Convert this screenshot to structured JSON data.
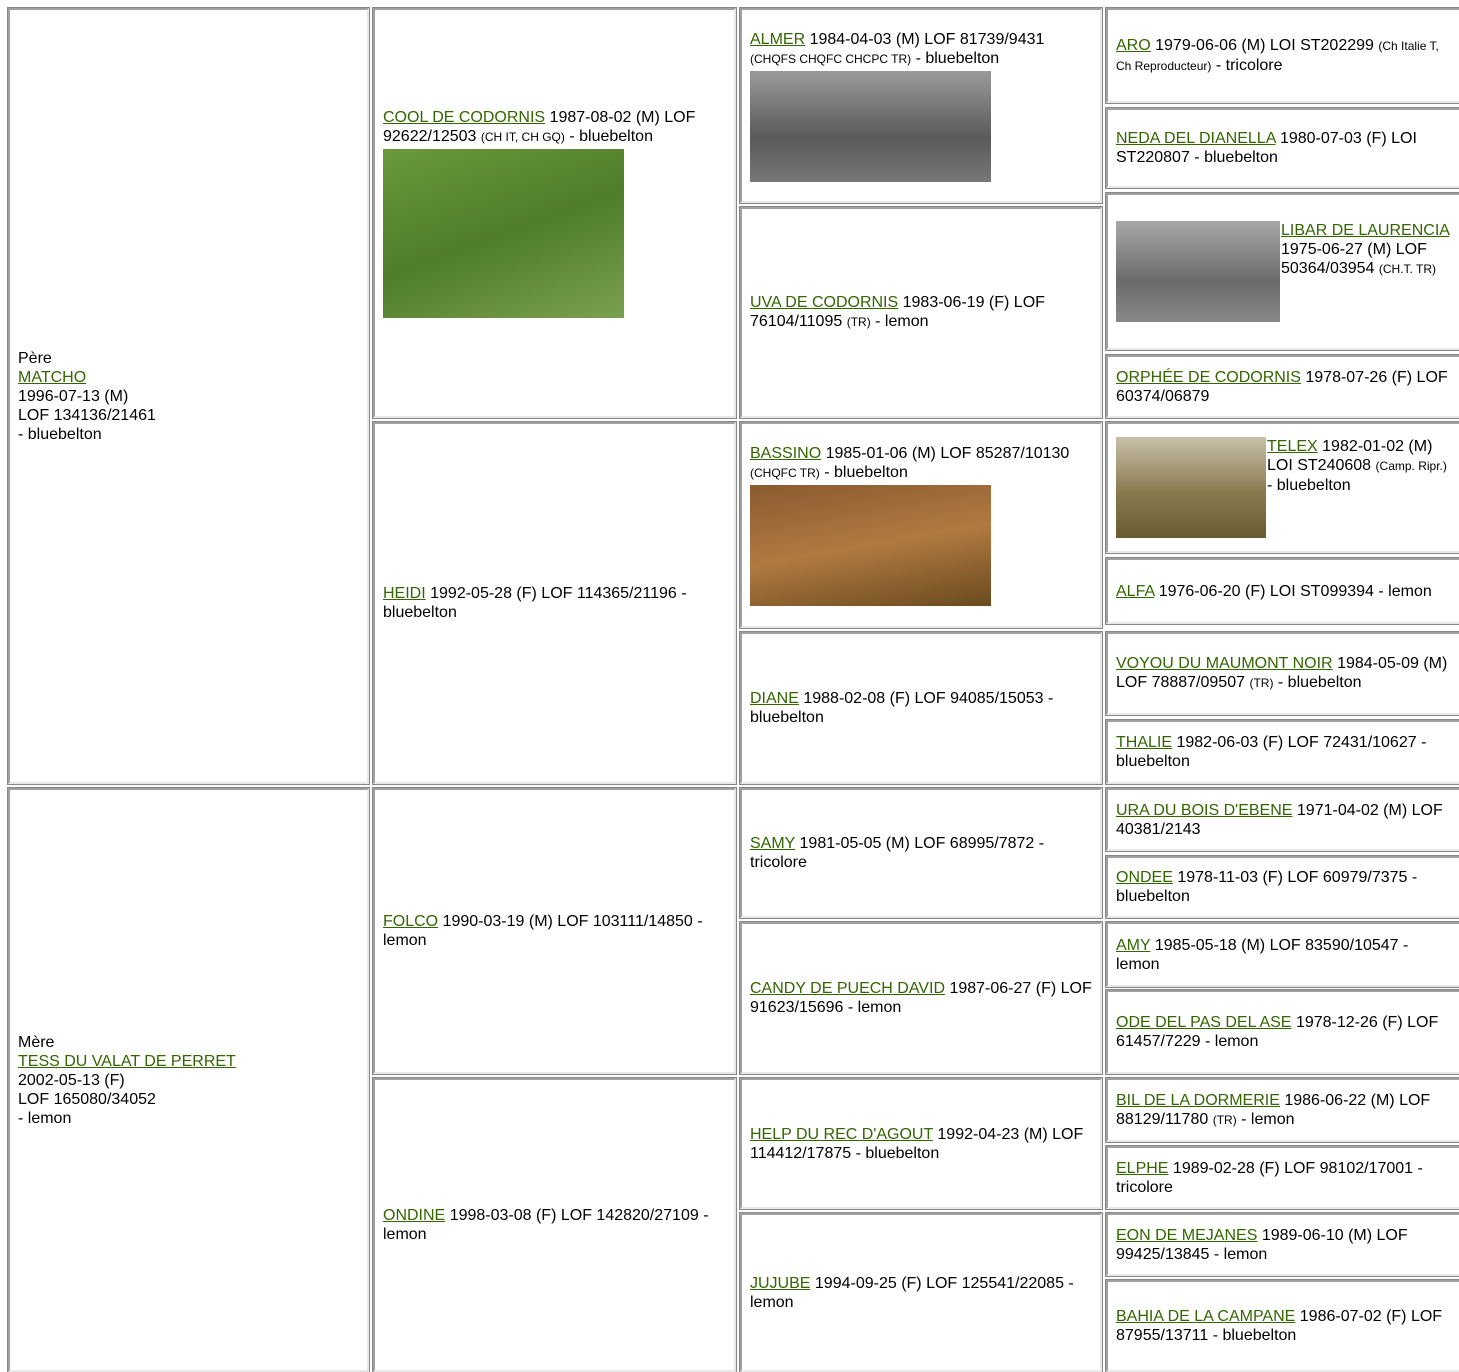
{
  "pedigree": {
    "generation_1": [
      {
        "role": "Père",
        "name": "MATCHO",
        "details": [
          "1996-07-13 (M)",
          "LOF 134136/21461",
          "- bluebelton"
        ]
      },
      {
        "role": "Mère",
        "name": "TESS DU VALAT DE PERRET",
        "details": [
          "2002-05-13 (F)",
          "LOF 165080/34052",
          "- lemon"
        ]
      }
    ],
    "generation_2": [
      {
        "name": "COOL DE CODORNIS",
        "info": "1987-08-02 (M) LOF 92622/12503",
        "titles": "(CH IT, CH GQ)",
        "coat": "- bluebelton"
      },
      {
        "name": "HEIDI",
        "info": "1992-05-28 (F) LOF 114365/21196",
        "coat": "- bluebelton"
      },
      {
        "name": "FOLCO",
        "info": "1990-03-19 (M) LOF 103111/14850",
        "coat": "- lemon"
      },
      {
        "name": "ONDINE",
        "info": "1998-03-08 (F) LOF 142820/27109",
        "coat": "- lemon"
      }
    ],
    "generation_3": [
      {
        "name": "ALMER",
        "info": "1984-04-03 (M) LOF 81739/9431",
        "titles": "(CHQFS CHQFC CHCPC TR)",
        "coat": "- bluebelton"
      },
      {
        "name": "UVA DE CODORNIS",
        "info": "1983-06-19 (F) LOF 76104/11095",
        "titles": "(TR)",
        "coat": "- lemon"
      },
      {
        "name": "BASSINO",
        "info": "1985-01-06 (M) LOF 85287/10130",
        "titles": "(CHQFC TR)",
        "coat": "- bluebelton"
      },
      {
        "name": "DIANE",
        "info": "1988-02-08 (F) LOF 94085/15053",
        "coat": "- bluebelton"
      },
      {
        "name": "SAMY",
        "info": "1981-05-05 (M) LOF 68995/7872",
        "coat": "- tricolore"
      },
      {
        "name": "CANDY DE PUECH DAVID",
        "info": "1987-06-27 (F) LOF 91623/15696",
        "coat": "- lemon"
      },
      {
        "name": "HELP DU REC D'AGOUT",
        "info": "1992-04-23 (M) LOF 114412/17875",
        "coat": "- bluebelton"
      },
      {
        "name": "JUJUBE",
        "info": "1994-09-25 (F) LOF 125541/22085",
        "coat": "- lemon"
      }
    ],
    "generation_4": [
      {
        "name": "ARO",
        "info": "1979-06-06 (M) LOI ST202299",
        "titles": "(Ch Italie T, Ch Reproducteur)",
        "coat": "- tricolore"
      },
      {
        "name": "NEDA DEL DIANELLA",
        "info": "1980-07-03 (F) LOI ST220807",
        "coat": "- bluebelton"
      },
      {
        "name": "LIBAR DE LAURENCIA",
        "info": "1975-06-27 (M) LOF 50364/03954",
        "titles": "(CH.T. TR)"
      },
      {
        "name": "ORPHÉE DE CODORNIS",
        "info": "1978-07-26 (F) LOF 60374/06879"
      },
      {
        "name": "TELEX",
        "info": "1982-01-02 (M) LOI ST240608",
        "titles": "(Camp. Ripr.)",
        "coat": "- bluebelton"
      },
      {
        "name": "ALFA",
        "info": "1976-06-20 (F) LOI ST099394",
        "coat": "- lemon"
      },
      {
        "name": "VOYOU DU MAUMONT NOIR",
        "info": "1984-05-09 (M) LOF 78887/09507",
        "titles": "(TR)",
        "coat": "- bluebelton"
      },
      {
        "name": "THALIE",
        "info": "1982-06-03 (F) LOF 72431/10627",
        "coat": "- bluebelton"
      },
      {
        "name": "URA DU BOIS D'EBENE",
        "info": "1971-04-02 (M) LOF 40381/2143"
      },
      {
        "name": "ONDEE",
        "info": "1978-11-03 (F) LOF 60979/7375",
        "coat": "- bluebelton"
      },
      {
        "name": "AMY",
        "info": "1985-05-18 (M) LOF 83590/10547",
        "coat": "- lemon"
      },
      {
        "name": "ODE DEL PAS DEL ASE",
        "info": "1978-12-26 (F) LOF 61457/7229",
        "coat": "- lemon"
      },
      {
        "name": "BIL DE LA DORMERIE",
        "info": "1986-06-22 (M) LOF 88129/11780",
        "titles": "(TR)",
        "coat": "- lemon"
      },
      {
        "name": "ELPHE",
        "info": "1989-02-28 (F) LOF 98102/17001",
        "coat": "- tricolore"
      },
      {
        "name": "EON DE MEJANES",
        "info": "1989-06-10 (M) LOF 99425/13845",
        "coat": "- lemon"
      },
      {
        "name": "BAHIA DE LA CAMPANE",
        "info": "1986-07-02 (F) LOF 87955/13711",
        "coat": "- bluebelton"
      }
    ]
  }
}
